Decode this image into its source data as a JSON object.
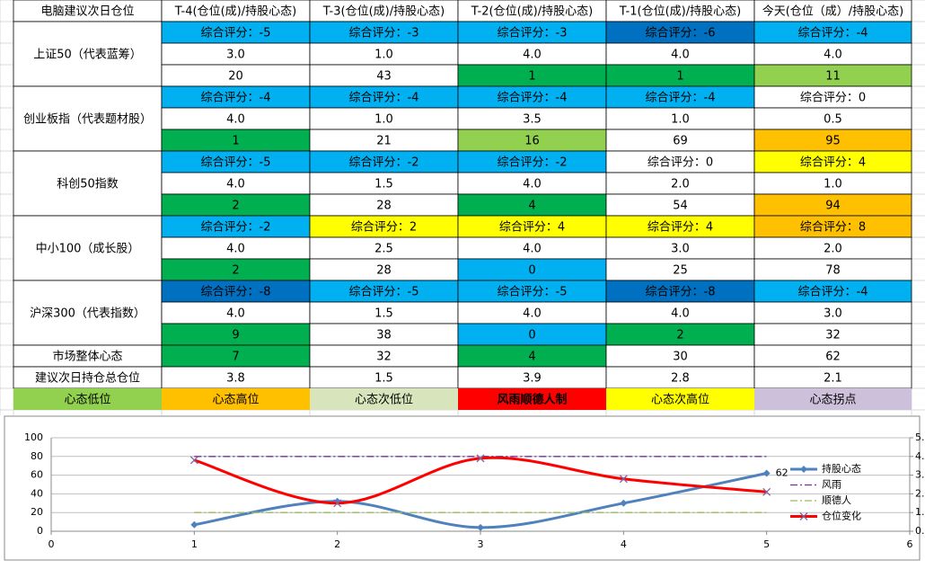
{
  "table": {
    "header": [
      "电脑建议次日仓位",
      "T-4(仓位(成)/持股心态)",
      "T-3(仓位(成)/持股心态)",
      "T-2(仓位(成)/持股心态)",
      "T-1(仓位(成)/持股心态)",
      "今天(仓位（成）/持股心态)"
    ],
    "indices": [
      {
        "name": "上证50（代表蓝筹）",
        "scores": [
          "综合评分：-5",
          "综合评分：-3",
          "综合评分：-3",
          "综合评分：-6",
          "综合评分：-4"
        ],
        "score_fills": [
          "#00b0f0",
          "#00b0f0",
          "#00b0f0",
          "#0070c0",
          "#00b0f0"
        ],
        "positions": [
          "3.0",
          "1.0",
          "4.0",
          "4.0",
          "4.0"
        ],
        "moods": [
          "20",
          "43",
          "1",
          "1",
          "11"
        ],
        "mood_fills": [
          "#ffffff",
          "#ffffff",
          "#00b050",
          "#00b050",
          "#92d050"
        ]
      },
      {
        "name": "创业板指（代表题材股）",
        "scores": [
          "综合评分：-4",
          "综合评分：-4",
          "综合评分：-4",
          "综合评分：-4",
          "综合评分：0"
        ],
        "score_fills": [
          "#00b0f0",
          "#00b0f0",
          "#00b0f0",
          "#00b0f0",
          "#ffffff"
        ],
        "positions": [
          "4.0",
          "1.0",
          "3.5",
          "1.0",
          "0.5"
        ],
        "moods": [
          "1",
          "21",
          "16",
          "69",
          "95"
        ],
        "mood_fills": [
          "#00b050",
          "#ffffff",
          "#92d050",
          "#ffffff",
          "#ffc000"
        ]
      },
      {
        "name": "科创50指数",
        "scores": [
          "综合评分：-5",
          "综合评分：-2",
          "综合评分：-2",
          "综合评分：0",
          "综合评分：4"
        ],
        "score_fills": [
          "#00b0f0",
          "#00b0f0",
          "#00b0f0",
          "#ffffff",
          "#ffff00"
        ],
        "positions": [
          "4.0",
          "1.5",
          "4.0",
          "2.0",
          "1.0"
        ],
        "moods": [
          "2",
          "28",
          "4",
          "54",
          "94"
        ],
        "mood_fills": [
          "#00b050",
          "#ffffff",
          "#00b050",
          "#ffffff",
          "#ffc000"
        ]
      },
      {
        "name": "中小100（成长股）",
        "scores": [
          "综合评分：-2",
          "综合评分：2",
          "综合评分：4",
          "综合评分：4",
          "综合评分：8"
        ],
        "score_fills": [
          "#00b0f0",
          "#ffff00",
          "#ffff00",
          "#ffff00",
          "#ffc000"
        ],
        "positions": [
          "4.0",
          "2.5",
          "4.0",
          "3.0",
          "2.0"
        ],
        "moods": [
          "2",
          "28",
          "0",
          "25",
          "78"
        ],
        "mood_fills": [
          "#00b050",
          "#ffffff",
          "#00b0f0",
          "#ffffff",
          "#ffffff"
        ]
      },
      {
        "name": "沪深300（代表指数）",
        "scores": [
          "综合评分：-8",
          "综合评分：-5",
          "综合评分：-5",
          "综合评分：-8",
          "综合评分：-4"
        ],
        "score_fills": [
          "#0070c0",
          "#00b0f0",
          "#00b0f0",
          "#0070c0",
          "#00b0f0"
        ],
        "positions": [
          "4.0",
          "1.5",
          "4.0",
          "4.0",
          "3.0"
        ],
        "moods": [
          "9",
          "38",
          "0",
          "2",
          "32"
        ],
        "mood_fills": [
          "#00b050",
          "#ffffff",
          "#00b0f0",
          "#00b050",
          "#ffffff"
        ]
      }
    ],
    "market_row": {
      "label": "市场整体心态",
      "values": [
        "7",
        "32",
        "4",
        "30",
        "62"
      ],
      "fills": [
        "#00b050",
        "#ffffff",
        "#00b050",
        "#ffffff",
        "#ffffff"
      ]
    },
    "position_row": {
      "label": "建议次日持仓总仓位",
      "values": [
        "3.8",
        "1.5",
        "3.9",
        "2.8",
        "2.1"
      ]
    },
    "legend_row": {
      "labels": [
        "心态低位",
        "心态高位",
        "心态次低位",
        "风雨顺德人制",
        "心态次高位",
        "心态拐点"
      ],
      "fills": [
        "#92d050",
        "#ffc000",
        "#d8e4bc",
        "#ff0000",
        "#ffff00",
        "#ccc0da"
      ]
    }
  },
  "chart_data": {
    "type": "line",
    "x": [
      1,
      2,
      3,
      4,
      5
    ],
    "xlim": [
      0,
      6
    ],
    "xticks": [
      0,
      1,
      2,
      3,
      4,
      5,
      6
    ],
    "ylim": [
      0,
      100
    ],
    "yticks": [
      0,
      20,
      40,
      60,
      80,
      100
    ],
    "y2lim": [
      0,
      5
    ],
    "y2ticks": [
      {
        "value": 0,
        "label": "0."
      },
      {
        "value": 1,
        "label": "1."
      },
      {
        "value": 2,
        "label": "2."
      },
      {
        "value": 3,
        "label": "3."
      },
      {
        "value": 4,
        "label": "4."
      },
      {
        "value": 5,
        "label": "5."
      }
    ],
    "grid": true,
    "legend": "right",
    "smooth": true,
    "series": [
      {
        "name": "持股心态",
        "color": "#4f81bd",
        "values": [
          7,
          32,
          4,
          30,
          62
        ],
        "marker": "diamond",
        "value_labels": [
          null,
          null,
          null,
          null,
          "62"
        ]
      },
      {
        "name": "风雨",
        "color": "#7030a0",
        "values": [
          80,
          80,
          80,
          80,
          80
        ],
        "dash": "dash-dot"
      },
      {
        "name": "顺德人",
        "color": "#9bbb59",
        "values": [
          20,
          20,
          20,
          20,
          20
        ],
        "dash": "dash-dot"
      },
      {
        "name": "仓位变化",
        "color": "#ff0000",
        "values": [
          3.8,
          1.5,
          3.9,
          2.8,
          2.1
        ],
        "axis": "y2",
        "marker": "x"
      }
    ]
  }
}
